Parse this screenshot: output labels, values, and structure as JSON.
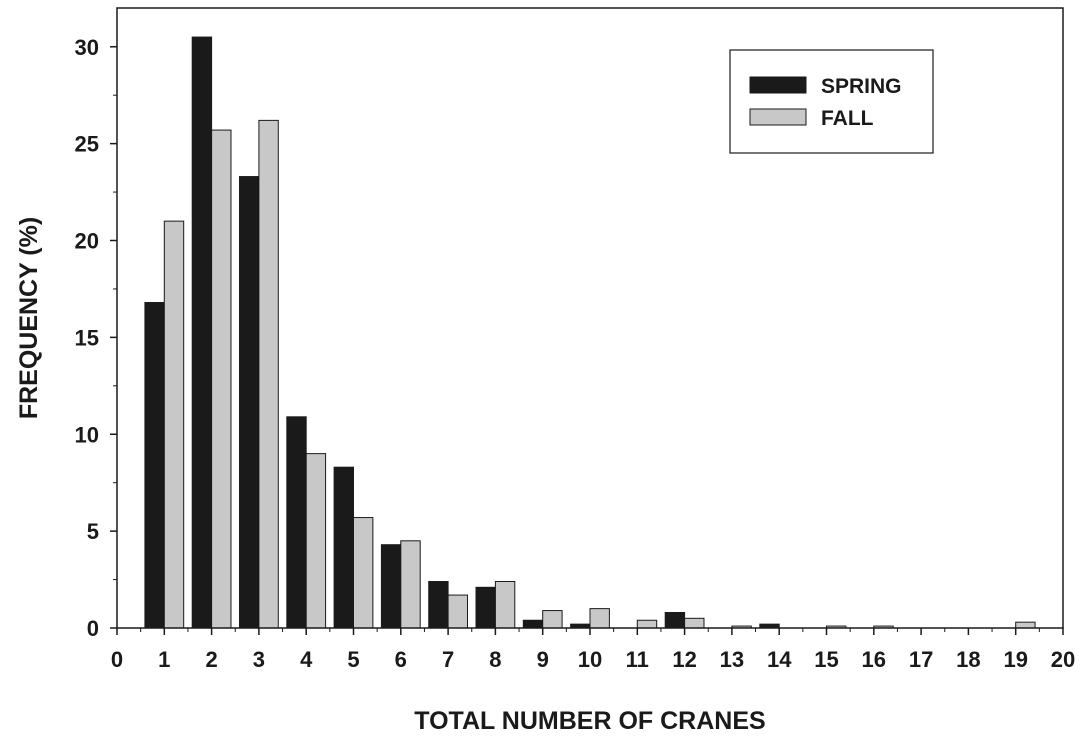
{
  "chart_data": {
    "type": "bar",
    "xlabel": "TOTAL NUMBER OF CRANES",
    "ylabel": "FREQUENCY (%)",
    "xlim": [
      0,
      20
    ],
    "ylim": [
      0,
      32
    ],
    "x_ticks": [
      0,
      1,
      2,
      3,
      4,
      5,
      6,
      7,
      8,
      9,
      10,
      11,
      12,
      13,
      14,
      15,
      16,
      17,
      18,
      19,
      20
    ],
    "y_ticks": [
      0,
      5,
      10,
      15,
      20,
      25,
      30
    ],
    "categories": [
      1,
      2,
      3,
      4,
      5,
      6,
      7,
      8,
      9,
      10,
      11,
      12,
      13,
      14,
      15,
      16,
      17,
      18,
      19
    ],
    "series": [
      {
        "name": "SPRING",
        "color": "#1a1a1a",
        "values": [
          16.8,
          30.5,
          23.3,
          10.9,
          8.3,
          4.3,
          2.4,
          2.1,
          0.4,
          0.2,
          0,
          0.8,
          0,
          0.2,
          0,
          0,
          0,
          0,
          0
        ]
      },
      {
        "name": "FALL",
        "color": "#c8c8c8",
        "values": [
          21.0,
          25.7,
          26.2,
          9.0,
          5.7,
          4.5,
          1.7,
          2.4,
          0.9,
          1.0,
          0.4,
          0.5,
          0.1,
          0,
          0.1,
          0.1,
          0,
          0,
          0.3
        ]
      }
    ],
    "legend_position": "top-right",
    "grid": false
  }
}
